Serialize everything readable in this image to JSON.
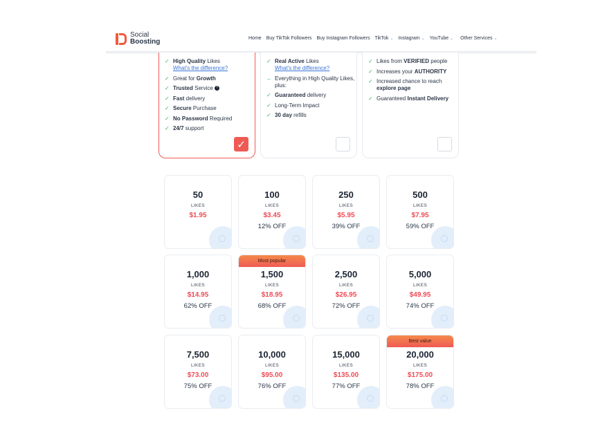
{
  "header": {
    "logo_line1": "Social",
    "logo_line2": "Boosting",
    "nav": [
      {
        "label": "Home",
        "chevron": false
      },
      {
        "label": "Buy TikTok Followers",
        "chevron": false
      },
      {
        "label": "Buy Instagram Followers",
        "chevron": false
      },
      {
        "label": "TikTok",
        "chevron": true
      },
      {
        "label": "Instagram",
        "chevron": true
      },
      {
        "label": "YouTube",
        "chevron": true
      },
      {
        "label": "Other Services",
        "chevron": true
      }
    ]
  },
  "features": [
    {
      "selected": true,
      "items": [
        {
          "bold": "High Quality",
          "text": " Likes",
          "link": "What's the difference?"
        },
        {
          "pre": "Great for ",
          "bold": "Growth"
        },
        {
          "bold": "Trusted",
          "text": " Service",
          "info": "?"
        },
        {
          "bold": "Fast",
          "text": " delivery"
        },
        {
          "bold": "Secure",
          "text": " Purchase"
        },
        {
          "bold": "No Password",
          "text": " Required"
        },
        {
          "bold": "24/7",
          "text": " support"
        }
      ]
    },
    {
      "selected": false,
      "items": [
        {
          "bold": "Real Active",
          "text": " Likes",
          "link": "What's the difference?"
        },
        {
          "pre": "Everything in High Quality Likes, plus:",
          "arrow": true
        },
        {
          "bold": "Guaranteed",
          "text": " delivery"
        },
        {
          "pre": "Long-Term Impact"
        },
        {
          "bold": "30 day",
          "text": " refills"
        }
      ]
    },
    {
      "selected": false,
      "items": [
        {
          "pre": "Likes from ",
          "bold": "VERIFIED",
          "text": " people"
        },
        {
          "pre": "Increases your ",
          "bold": "AUTHORITY"
        },
        {
          "pre": "Increased chance to reach ",
          "bold": "explore page"
        },
        {
          "pre": "Guaranteed ",
          "bold": "Instant Delivery"
        }
      ]
    }
  ],
  "packages": [
    {
      "qty": "50",
      "unit": "LIKES",
      "price": "$1.95",
      "off": ""
    },
    {
      "qty": "100",
      "unit": "LIKES",
      "price": "$3.45",
      "off": "12% OFF"
    },
    {
      "qty": "250",
      "unit": "LIKES",
      "price": "$5.95",
      "off": "39% OFF"
    },
    {
      "qty": "500",
      "unit": "LIKES",
      "price": "$7.95",
      "off": "59% OFF"
    },
    {
      "qty": "1,000",
      "unit": "LIKES",
      "price": "$14.95",
      "off": "62% OFF"
    },
    {
      "qty": "1,500",
      "unit": "LIKES",
      "price": "$18.95",
      "off": "68% OFF",
      "tag": "Most popular"
    },
    {
      "qty": "2,500",
      "unit": "LIKES",
      "price": "$26.95",
      "off": "72% OFF"
    },
    {
      "qty": "5,000",
      "unit": "LIKES",
      "price": "$49.95",
      "off": "74% OFF"
    },
    {
      "qty": "7,500",
      "unit": "LIKES",
      "price": "$73.00",
      "off": "75% OFF"
    },
    {
      "qty": "10,000",
      "unit": "LIKES",
      "price": "$95.00",
      "off": "76% OFF"
    },
    {
      "qty": "15,000",
      "unit": "LIKES",
      "price": "$135.00",
      "off": "77% OFF"
    },
    {
      "qty": "20,000",
      "unit": "LIKES",
      "price": "$175.00",
      "off": "78% OFF",
      "tag": "Best value"
    }
  ],
  "colors": {
    "accent": "#ef5a55",
    "check": "#39b46a",
    "link": "#3a73d6"
  }
}
